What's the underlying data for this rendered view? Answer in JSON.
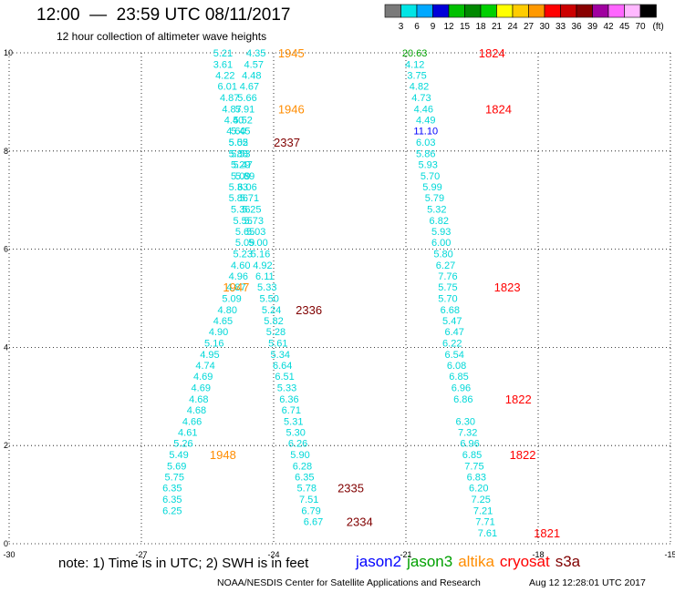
{
  "header": {
    "title": "12:00  —  23:59 UTC 08/11/2017",
    "subtitle": "12 hour collection of altimeter wave heights"
  },
  "colorbar": {
    "ticks": [
      "3",
      "6",
      "9",
      "12",
      "15",
      "18",
      "21",
      "24",
      "27",
      "30",
      "33",
      "36",
      "39",
      "42",
      "45",
      "70"
    ],
    "unit": "(ft)",
    "colors": [
      "#7a7a7a",
      "#00e5e5",
      "#00a8ff",
      "#0000d8",
      "#00c000",
      "#008800",
      "#00d000",
      "#ffff00",
      "#ffcc00",
      "#ff9900",
      "#ff0000",
      "#cc0000",
      "#880000",
      "#a000a0",
      "#ff66ff",
      "#ffb8ff",
      "#000000"
    ]
  },
  "footer": {
    "note": "note:  1) Time is in UTC;  2) SWH is in feet",
    "legend": [
      {
        "label": "jason2",
        "color": "#0000ff"
      },
      {
        "label": "jason3",
        "color": "#00a000"
      },
      {
        "label": "altika",
        "color": "#ff8c00"
      },
      {
        "label": "cryosat",
        "color": "#ff0000"
      },
      {
        "label": "s3a",
        "color": "#800000"
      }
    ],
    "credit": "NOAA/NESDIS Center for Satellite Applications and Research",
    "timestamp": "Aug 12 12:28:01 UTC 2017"
  },
  "chart_data": {
    "type": "scatter",
    "xlim": [
      -30,
      -15
    ],
    "ylim": [
      0,
      10
    ],
    "xticks": [
      "-30",
      "-27",
      "-24",
      "-21",
      "-18",
      "-15"
    ],
    "yticks": [
      "0",
      "2",
      "4",
      "6",
      "8",
      "10"
    ],
    "grid": true,
    "series": [
      {
        "name": "s3a",
        "color": "#00d8d8",
        "points": [
          [
            -25.15,
            10,
            "5.21"
          ],
          [
            -25.15,
            9.77,
            "3.61"
          ],
          [
            -25.1,
            9.55,
            "4.22"
          ],
          [
            -25.05,
            9.32,
            "6.01"
          ],
          [
            -25.0,
            9.09,
            "4.87"
          ],
          [
            -24.95,
            8.86,
            "4.87"
          ],
          [
            -24.9,
            8.64,
            "4.40"
          ],
          [
            -24.85,
            8.41,
            "4.60"
          ],
          [
            -24.8,
            8.18,
            "5.05"
          ],
          [
            -24.75,
            7.95,
            "5.53"
          ],
          [
            -24.75,
            7.73,
            "5.29"
          ],
          [
            -24.75,
            7.5,
            "5.09"
          ],
          [
            -24.8,
            7.27,
            "5.33"
          ],
          [
            -24.8,
            7.05,
            "5.86"
          ],
          [
            -24.75,
            6.82,
            "5.36"
          ],
          [
            -24.7,
            6.59,
            "5.55"
          ],
          [
            -24.65,
            6.36,
            "5.65"
          ],
          [
            -24.65,
            6.14,
            "5.09"
          ],
          [
            -24.7,
            5.91,
            "5.23"
          ],
          [
            -24.75,
            5.68,
            "4.60"
          ],
          [
            -24.8,
            5.45,
            "4.96"
          ],
          [
            -24.85,
            5.23,
            "4.87"
          ],
          [
            -24.95,
            5.0,
            "5.09"
          ],
          [
            -25.05,
            4.77,
            "4.80"
          ],
          [
            -25.15,
            4.55,
            "4.65"
          ],
          [
            -25.25,
            4.32,
            "4.90"
          ],
          [
            -25.35,
            4.09,
            "5.16"
          ],
          [
            -25.45,
            3.86,
            "4.95"
          ],
          [
            -25.55,
            3.64,
            "4.74"
          ],
          [
            -25.6,
            3.41,
            "4.69"
          ],
          [
            -25.65,
            3.18,
            "4.69"
          ],
          [
            -25.7,
            2.95,
            "4.68"
          ],
          [
            -25.75,
            2.73,
            "4.68"
          ],
          [
            -25.85,
            2.5,
            "4.66"
          ],
          [
            -25.95,
            2.27,
            "4.61"
          ],
          [
            -26.05,
            2.05,
            "5.26"
          ],
          [
            -26.15,
            1.82,
            "5.49"
          ],
          [
            -26.2,
            1.59,
            "5.69"
          ],
          [
            -26.25,
            1.36,
            "5.75"
          ],
          [
            -26.3,
            1.14,
            "6.35"
          ],
          [
            -26.3,
            0.91,
            "6.35"
          ],
          [
            -26.3,
            0.68,
            "6.25"
          ]
        ]
      },
      {
        "name": "s3a",
        "color": "#00d8d8",
        "points": [
          [
            -24.4,
            10,
            "4.35"
          ],
          [
            -24.45,
            9.77,
            "4.57"
          ],
          [
            -24.5,
            9.55,
            "4.48"
          ],
          [
            -24.55,
            9.32,
            "4.67"
          ],
          [
            -24.6,
            9.09,
            "5.66"
          ],
          [
            -24.65,
            8.86,
            "5.91"
          ],
          [
            -24.7,
            8.64,
            "5.52"
          ],
          [
            -24.75,
            8.41,
            "5.45"
          ],
          [
            -24.8,
            8.18,
            "5.52"
          ],
          [
            -24.8,
            7.95,
            "5.88"
          ],
          [
            -24.7,
            7.73,
            "5.47"
          ],
          [
            -24.65,
            7.5,
            "5.89"
          ],
          [
            -24.6,
            7.27,
            "6.06"
          ],
          [
            -24.55,
            7.05,
            "5.71"
          ],
          [
            -24.5,
            6.82,
            "5.25"
          ],
          [
            -24.45,
            6.59,
            "5.73"
          ],
          [
            -24.4,
            6.36,
            "5.03"
          ],
          [
            -24.35,
            6.14,
            "5.00"
          ],
          [
            -24.3,
            5.91,
            "5.16"
          ],
          [
            -24.25,
            5.68,
            "4.92"
          ],
          [
            -24.2,
            5.45,
            "6.11"
          ],
          [
            -24.15,
            5.23,
            "5.33"
          ],
          [
            -24.1,
            5.0,
            "5.50"
          ],
          [
            -24.05,
            4.77,
            "5.24"
          ],
          [
            -24.0,
            4.55,
            "5.82"
          ],
          [
            -23.95,
            4.32,
            "5.28"
          ],
          [
            -23.9,
            4.09,
            "5.61"
          ],
          [
            -23.85,
            3.86,
            "5.34"
          ],
          [
            -23.8,
            3.64,
            "6.64"
          ],
          [
            -23.75,
            3.41,
            "6.51"
          ],
          [
            -23.7,
            3.18,
            "5.33"
          ],
          [
            -23.65,
            2.95,
            "6.36"
          ],
          [
            -23.6,
            2.73,
            "6.71"
          ],
          [
            -23.55,
            2.5,
            "5.31"
          ],
          [
            -23.5,
            2.27,
            "5.30"
          ],
          [
            -23.45,
            2.05,
            "6.26"
          ],
          [
            -23.4,
            1.82,
            "5.90"
          ],
          [
            -23.35,
            1.59,
            "6.28"
          ],
          [
            -23.3,
            1.36,
            "6.35"
          ],
          [
            -23.25,
            1.14,
            "5.78"
          ],
          [
            -23.2,
            0.91,
            "7.51"
          ],
          [
            -23.15,
            0.68,
            "6.79"
          ],
          [
            -23.1,
            0.45,
            "6.67"
          ]
        ]
      },
      {
        "name": "s3a",
        "color": "#00d8d8",
        "points": [
          [
            -20.8,
            9.77,
            "4.12"
          ],
          [
            -20.75,
            9.55,
            "3.75"
          ],
          [
            -20.7,
            9.32,
            "4.82"
          ],
          [
            -20.65,
            9.09,
            "4.73"
          ],
          [
            -20.6,
            8.86,
            "4.46"
          ],
          [
            -20.55,
            8.64,
            "4.49"
          ],
          [
            -20.55,
            8.18,
            "6.03"
          ],
          [
            -20.55,
            7.95,
            "5.86"
          ],
          [
            -20.5,
            7.73,
            "5.93"
          ],
          [
            -20.45,
            7.5,
            "5.70"
          ],
          [
            -20.4,
            7.27,
            "5.99"
          ],
          [
            -20.35,
            7.05,
            "5.79"
          ],
          [
            -20.3,
            6.82,
            "5.32"
          ],
          [
            -20.25,
            6.59,
            "6.82"
          ],
          [
            -20.2,
            6.36,
            "5.93"
          ],
          [
            -20.2,
            6.14,
            "6.00"
          ],
          [
            -20.15,
            5.91,
            "5.80"
          ],
          [
            -20.1,
            5.68,
            "6.27"
          ],
          [
            -20.05,
            5.45,
            "7.76"
          ],
          [
            -20.05,
            5.23,
            "5.75"
          ],
          [
            -20.05,
            5.0,
            "5.70"
          ],
          [
            -20.0,
            4.77,
            "6.68"
          ],
          [
            -19.95,
            4.55,
            "5.47"
          ],
          [
            -19.9,
            4.32,
            "6.47"
          ],
          [
            -19.95,
            4.09,
            "6.22"
          ],
          [
            -19.9,
            3.86,
            "6.54"
          ],
          [
            -19.85,
            3.64,
            "6.08"
          ],
          [
            -19.8,
            3.41,
            "6.85"
          ],
          [
            -19.75,
            3.18,
            "6.96"
          ],
          [
            -19.7,
            2.95,
            "6.86"
          ],
          [
            -19.65,
            2.5,
            "6.30"
          ],
          [
            -19.6,
            2.27,
            "7.32"
          ],
          [
            -19.55,
            2.05,
            "6.96"
          ],
          [
            -19.5,
            1.82,
            "6.85"
          ],
          [
            -19.45,
            1.59,
            "7.75"
          ],
          [
            -19.4,
            1.36,
            "6.83"
          ],
          [
            -19.35,
            1.14,
            "6.20"
          ],
          [
            -19.3,
            0.91,
            "7.25"
          ],
          [
            -19.25,
            0.68,
            "7.21"
          ],
          [
            -19.2,
            0.45,
            "7.71"
          ],
          [
            -19.15,
            0.22,
            "7.61"
          ]
        ]
      },
      {
        "name": "jason2",
        "color": "#0000ff",
        "points": [
          [
            -20.55,
            8.41,
            "11.10"
          ]
        ]
      },
      {
        "name": "jason3",
        "color": "#00a000",
        "points": [
          [
            -20.8,
            10,
            "20.63"
          ]
        ]
      }
    ],
    "annotations": [
      {
        "x": -23.9,
        "y": 10,
        "text": "1945",
        "color": "#ff8c00"
      },
      {
        "x": -23.9,
        "y": 8.86,
        "text": "1946",
        "color": "#ff8c00"
      },
      {
        "x": -24.0,
        "y": 8.18,
        "text": "2337",
        "color": "#800000"
      },
      {
        "x": -25.15,
        "y": 5.23,
        "text": "1947",
        "color": "#ff8c00"
      },
      {
        "x": -23.5,
        "y": 4.77,
        "text": "2336",
        "color": "#800000"
      },
      {
        "x": -25.45,
        "y": 1.82,
        "text": "1948",
        "color": "#ff8c00"
      },
      {
        "x": -22.55,
        "y": 1.14,
        "text": "2335",
        "color": "#800000"
      },
      {
        "x": -22.35,
        "y": 0.45,
        "text": "2334",
        "color": "#800000"
      },
      {
        "x": -19.35,
        "y": 10,
        "text": "1824",
        "color": "#ff0000"
      },
      {
        "x": -19.2,
        "y": 8.86,
        "text": "1824",
        "color": "#ff0000"
      },
      {
        "x": -19.0,
        "y": 5.23,
        "text": "1823",
        "color": "#ff0000"
      },
      {
        "x": -18.75,
        "y": 2.95,
        "text": "1822",
        "color": "#ff0000"
      },
      {
        "x": -18.65,
        "y": 1.82,
        "text": "1822",
        "color": "#ff0000"
      },
      {
        "x": -18.1,
        "y": 0.22,
        "text": "1821",
        "color": "#ff0000"
      }
    ]
  }
}
